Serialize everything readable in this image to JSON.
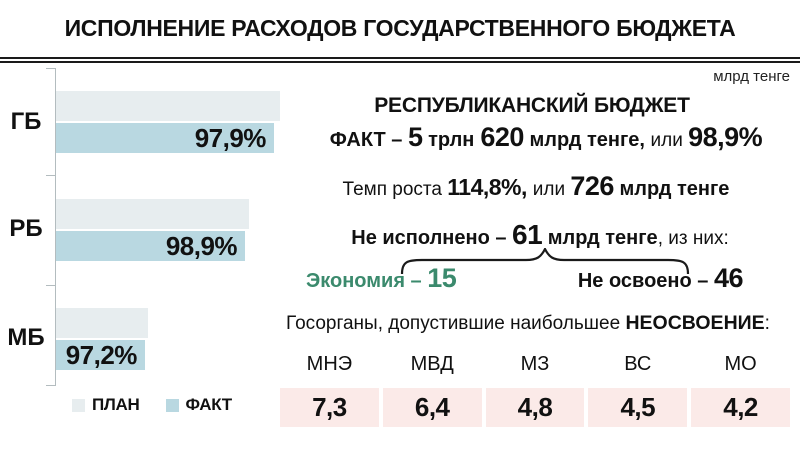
{
  "title": "ИСПОЛНЕНИЕ РАСХОДОВ ГОСУДАРСТВЕННОГО БЮДЖЕТА",
  "units_note": "млрд тенге",
  "chart_data": {
    "type": "bar",
    "orientation": "horizontal",
    "categories": [
      "ГБ",
      "РБ",
      "МБ"
    ],
    "series": [
      {
        "name": "ПЛАН",
        "relative_width_pct": [
          100,
          86.2,
          41.1
        ]
      },
      {
        "name": "ФАКТ",
        "relative_width_pct": [
          97.3,
          84.4,
          39.7
        ],
        "execution_pct": [
          97.9,
          98.9,
          97.2
        ],
        "data_labels": [
          "97,9%",
          "98,9%",
          "97,2%"
        ]
      }
    ],
    "legend": [
      "ПЛАН",
      "ФАКТ"
    ],
    "legend_position": "bottom-left",
    "units": "млрд тенге",
    "grid": false,
    "colors": {
      "plan": "#e7edef",
      "fact": "#b9d8e1"
    }
  },
  "summary": {
    "heading": "РЕСПУБЛИКАНСКИЙ БЮДЖЕТ",
    "fact_label": "ФАКТ – ",
    "fact_num1": "5",
    "fact_word1": " трлн",
    "fact_num2": "620",
    "fact_word2": " млрд тенге, ",
    "fact_conj": "или ",
    "fact_pct": "98,9%",
    "growth_label": "Темп роста ",
    "growth_pct": "114,8%, ",
    "growth_conj": "или ",
    "growth_num": "726",
    "growth_unit": " млрд тенге",
    "unexec_label": "Не исполнено – ",
    "unexec_num": "61",
    "unexec_unit": " млрд тенге",
    "unexec_suffix": ", из них:",
    "economy_label": "Экономия – ",
    "economy_value": "15",
    "economy_color": "#3b8a6d",
    "unused_label": "Не освоено – ",
    "unused_value": "46"
  },
  "agencies": {
    "caption_prefix": "Госорганы, допустившие наибольшее ",
    "caption_emphasis": "НЕОСВОЕНИЕ",
    "caption_suffix": ":",
    "cell_color": "#fbeae8",
    "columns": [
      {
        "name": "МНЭ",
        "value": "7,3"
      },
      {
        "name": "МВД",
        "value": "6,4"
      },
      {
        "name": "МЗ",
        "value": "4,8"
      },
      {
        "name": "ВС",
        "value": "4,5"
      },
      {
        "name": "МО",
        "value": "4,2"
      }
    ]
  }
}
